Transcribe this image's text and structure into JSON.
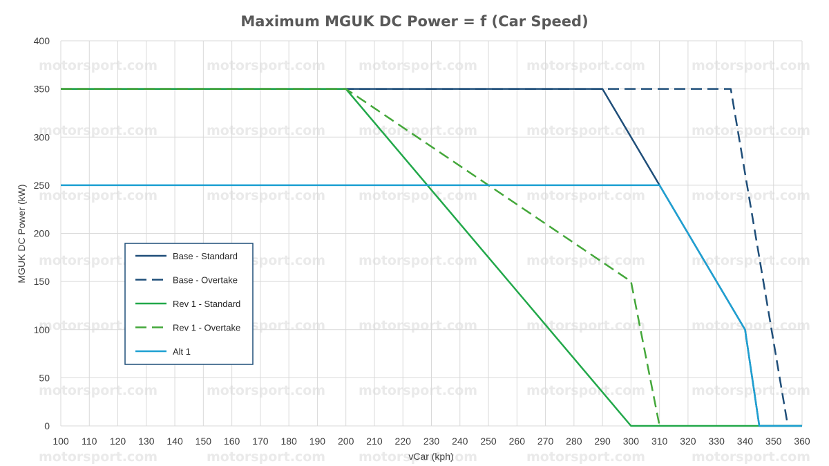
{
  "chart_data": {
    "type": "line",
    "title": "Maximum MGUK DC Power = f (Car Speed)",
    "xlabel": "vCar (kph)",
    "ylabel": "MGUK DC Power (kW)",
    "xlim": [
      100,
      360
    ],
    "ylim": [
      0,
      400
    ],
    "xticks": [
      100,
      110,
      120,
      130,
      140,
      150,
      160,
      170,
      180,
      190,
      200,
      210,
      220,
      230,
      240,
      250,
      260,
      270,
      280,
      290,
      300,
      310,
      320,
      330,
      340,
      350,
      360
    ],
    "yticks": [
      0,
      50,
      100,
      150,
      200,
      250,
      300,
      350,
      400
    ],
    "grid": true,
    "legend_position": "left-middle",
    "watermark": "motorsport.com",
    "series": [
      {
        "name": "Base - Standard",
        "color": "#1f4e79",
        "dash": "solid",
        "x": [
          100,
          290,
          310,
          340,
          345,
          360
        ],
        "y": [
          350,
          350,
          250,
          100,
          0,
          0
        ]
      },
      {
        "name": "Base - Overtake",
        "color": "#1f4e79",
        "dash": "dashed",
        "x": [
          100,
          335,
          355
        ],
        "y": [
          350,
          350,
          0
        ]
      },
      {
        "name": "Rev 1 - Standard",
        "color": "#22a84a",
        "dash": "solid",
        "x": [
          100,
          200,
          300,
          360
        ],
        "y": [
          350,
          350,
          0,
          0
        ]
      },
      {
        "name": "Rev 1 - Overtake",
        "color": "#44a73a",
        "dash": "dashed",
        "x": [
          100,
          200,
          300,
          310
        ],
        "y": [
          350,
          350,
          150,
          0
        ]
      },
      {
        "name": "Alt 1",
        "color": "#1ea0d2",
        "dash": "solid",
        "x": [
          100,
          310,
          340,
          345,
          360
        ],
        "y": [
          250,
          250,
          100,
          0,
          0
        ]
      }
    ]
  }
}
